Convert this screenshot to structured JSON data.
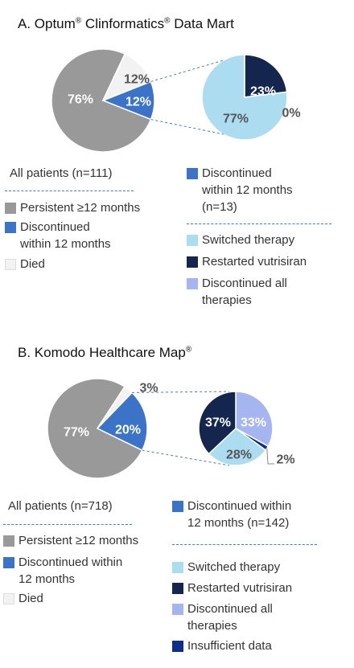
{
  "colors": {
    "persistent": "#999999",
    "discontinued": "#3a73c8",
    "died": "#f2f2f2",
    "switched": "#acdcef",
    "restarted": "#14264e",
    "disc_all": "#a5b5f0",
    "insufficient": "#0f2d8c",
    "connector": "#4a7bc0"
  },
  "chart_data": [
    {
      "type": "pie",
      "title": "A. Optum® Clinformatics® Data Mart",
      "main_pie": {
        "header": "All patients (n=111)",
        "slices": [
          {
            "name": "Persistent ≥12 months",
            "value": 76,
            "label": "76%"
          },
          {
            "name": "Discontinued within 12 months",
            "value": 12,
            "label": "12%"
          },
          {
            "name": "Died",
            "value": 12,
            "label": "12%"
          }
        ]
      },
      "sub_pie": {
        "header": "Discontinued within 12 months (n=13)",
        "slices": [
          {
            "name": "Switched therapy",
            "value": 77,
            "label": "77%"
          },
          {
            "name": "Restarted vutrisiran",
            "value": 23,
            "label": "23%"
          },
          {
            "name": "Discontinued all therapies",
            "value": 0,
            "label": "0%"
          }
        ]
      }
    },
    {
      "type": "pie",
      "title": "B. Komodo Healthcare Map®",
      "main_pie": {
        "header": "All patients (n=718)",
        "slices": [
          {
            "name": "Persistent ≥12 months",
            "value": 77,
            "label": "77%"
          },
          {
            "name": "Discontinued within 12 months",
            "value": 20,
            "label": "20%"
          },
          {
            "name": "Died",
            "value": 3,
            "label": "3%"
          }
        ]
      },
      "sub_pie": {
        "header": "Discontinued within 12 months (n=142)",
        "slices": [
          {
            "name": "Switched therapy",
            "value": 28,
            "label": "28%"
          },
          {
            "name": "Restarted vutrisiran",
            "value": 37,
            "label": "37%"
          },
          {
            "name": "Discontinued all therapies",
            "value": 33,
            "label": "33%"
          },
          {
            "name": "Insufficient data",
            "value": 2,
            "label": "2%"
          }
        ]
      }
    }
  ],
  "panels": {
    "a": {
      "title_prefix": "A. Optum",
      "title_sup1": "®",
      "title_mid": " Clinformatics",
      "title_sup2": "®",
      "title_suffix": " Data Mart",
      "main_header": "All patients (n=111)",
      "sub_header_l1": "Discontinued",
      "sub_header_l2": "within 12 months",
      "sub_header_l3": "(n=13)",
      "legend_main": [
        {
          "l1": "Persistent ≥12 months",
          "l2": ""
        },
        {
          "l1": "Discontinued",
          "l2": "within 12 months"
        },
        {
          "l1": "Died",
          "l2": ""
        }
      ],
      "legend_sub": [
        {
          "l1": "Switched therapy",
          "l2": ""
        },
        {
          "l1": "Restarted vutrisiran",
          "l2": ""
        },
        {
          "l1": "Discontinued all",
          "l2": "therapies"
        }
      ]
    },
    "b": {
      "title_prefix": "B. Komodo Healthcare Map",
      "title_sup1": "®",
      "main_header": "All patients (n=718)",
      "sub_header_l1": "Discontinued within",
      "sub_header_l2": "12 months (n=142)",
      "legend_main": [
        {
          "l1": "Persistent ≥12 months",
          "l2": ""
        },
        {
          "l1": "Discontinued within",
          "l2": "12 months"
        },
        {
          "l1": "Died",
          "l2": ""
        }
      ],
      "legend_sub": [
        {
          "l1": "Switched therapy",
          "l2": ""
        },
        {
          "l1": "Restarted vutrisiran",
          "l2": ""
        },
        {
          "l1": "Discontinued all",
          "l2": "therapies"
        },
        {
          "l1": "Insufficient data",
          "l2": ""
        }
      ]
    }
  }
}
